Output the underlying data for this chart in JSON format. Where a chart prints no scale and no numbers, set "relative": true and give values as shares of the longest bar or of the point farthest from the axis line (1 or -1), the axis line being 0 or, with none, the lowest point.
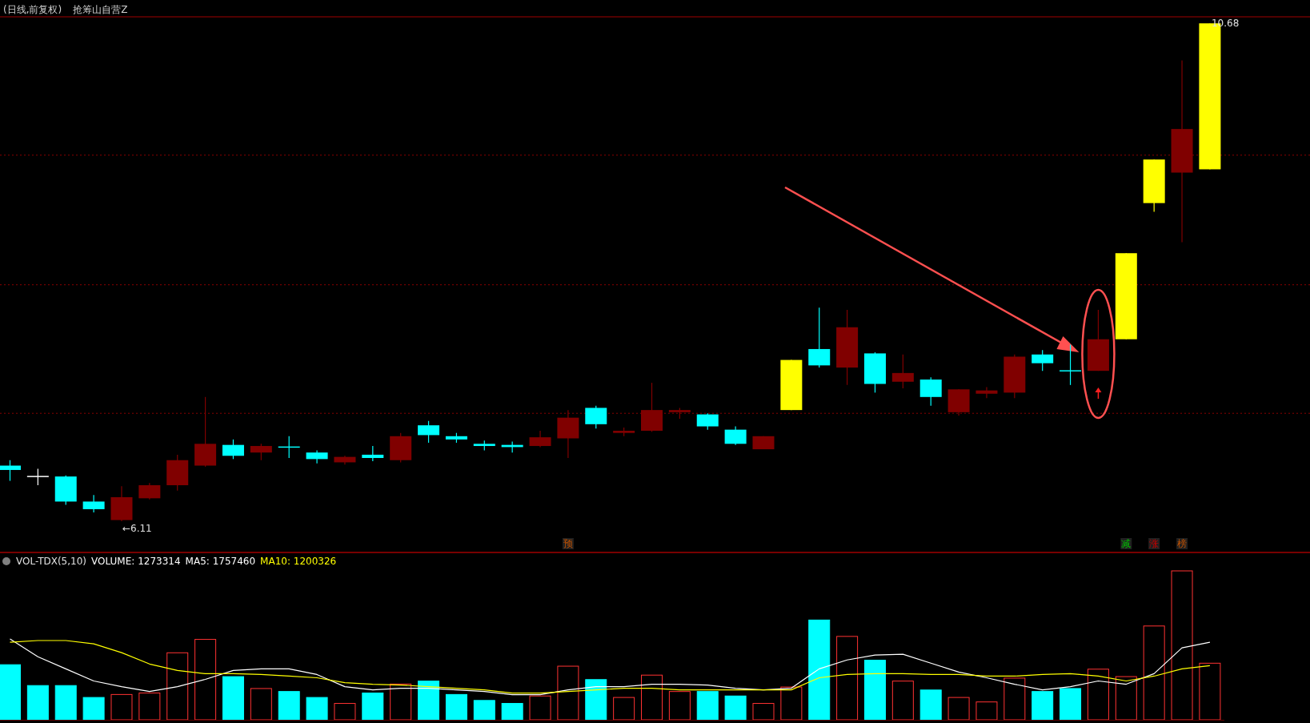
{
  "chart_data": [
    {
      "type": "candlestick",
      "title": "(日线,前复权)",
      "subtitle": "抢筹山自营Z",
      "categories": [
        null,
        null,
        null,
        null,
        null,
        null,
        null,
        null,
        null,
        null,
        null,
        null,
        null,
        null,
        null,
        null,
        null,
        null,
        null,
        null,
        null,
        null,
        null,
        null,
        null,
        null,
        null,
        null,
        null,
        null,
        null,
        null,
        null,
        null,
        null,
        null,
        null,
        null,
        null,
        null,
        null,
        null,
        null,
        null
      ],
      "ohlc": [
        [
          6.62,
          6.67,
          6.48,
          6.58
        ],
        [
          6.52,
          6.59,
          6.44,
          6.52
        ],
        [
          6.52,
          6.53,
          6.26,
          6.29
        ],
        [
          6.29,
          6.35,
          6.19,
          6.22
        ],
        [
          6.12,
          6.43,
          6.11,
          6.33
        ],
        [
          6.32,
          6.46,
          6.31,
          6.44
        ],
        [
          6.44,
          6.72,
          6.39,
          6.67
        ],
        [
          6.62,
          7.25,
          6.61,
          6.82
        ],
        [
          6.81,
          6.86,
          6.68,
          6.71
        ],
        [
          6.74,
          6.82,
          6.67,
          6.8
        ],
        [
          6.79,
          6.89,
          6.69,
          6.78
        ],
        [
          6.74,
          6.76,
          6.64,
          6.68
        ],
        [
          6.65,
          6.71,
          6.63,
          6.7
        ],
        [
          6.72,
          6.8,
          6.66,
          6.69
        ],
        [
          6.67,
          6.92,
          6.65,
          6.89
        ],
        [
          6.99,
          7.03,
          6.83,
          6.9
        ],
        [
          6.89,
          6.92,
          6.83,
          6.86
        ],
        [
          6.82,
          6.85,
          6.76,
          6.8
        ],
        [
          6.81,
          6.84,
          6.74,
          6.79
        ],
        [
          6.8,
          6.94,
          6.79,
          6.88
        ],
        [
          6.87,
          7.13,
          6.69,
          7.06
        ],
        [
          7.15,
          7.17,
          6.96,
          7.0
        ],
        [
          6.92,
          6.97,
          6.89,
          6.94
        ],
        [
          6.94,
          7.38,
          6.93,
          7.13
        ],
        [
          7.11,
          7.15,
          7.05,
          7.13
        ],
        [
          7.09,
          7.1,
          6.95,
          6.98
        ],
        [
          6.95,
          6.98,
          6.81,
          6.82
        ],
        [
          6.77,
          6.89,
          6.77,
          6.89
        ],
        [
          7.13,
          7.59,
          7.13,
          7.59
        ],
        [
          7.69,
          8.07,
          7.52,
          7.54
        ],
        [
          7.52,
          8.05,
          7.36,
          7.89
        ],
        [
          7.65,
          7.66,
          7.29,
          7.37
        ],
        [
          7.39,
          7.64,
          7.33,
          7.47
        ],
        [
          7.41,
          7.43,
          7.17,
          7.25
        ],
        [
          7.11,
          7.32,
          7.08,
          7.32
        ],
        [
          7.28,
          7.34,
          7.24,
          7.31
        ],
        [
          7.29,
          7.64,
          7.24,
          7.62
        ],
        [
          7.64,
          7.68,
          7.49,
          7.56
        ],
        [
          7.49,
          7.73,
          7.36,
          7.49
        ],
        [
          7.49,
          8.05,
          7.49,
          7.78
        ],
        [
          7.78,
          8.57,
          7.78,
          8.57
        ],
        [
          9.03,
          9.43,
          8.95,
          9.43
        ],
        [
          9.31,
          10.34,
          8.67,
          9.71
        ],
        [
          9.34,
          10.68,
          9.34,
          10.68
        ]
      ],
      "colors": [
        "#00ffff",
        "#ffffff",
        "#00ffff",
        "#00ffff",
        "#800000",
        "#800000",
        "#800000",
        "#800000",
        "#00ffff",
        "#800000",
        "#00ffff",
        "#00ffff",
        "#800000",
        "#00ffff",
        "#800000",
        "#00ffff",
        "#00ffff",
        "#00ffff",
        "#00ffff",
        "#800000",
        "#800000",
        "#00ffff",
        "#800000",
        "#800000",
        "#800000",
        "#00ffff",
        "#00ffff",
        "#800000",
        "#ffff00",
        "#00ffff",
        "#800000",
        "#00ffff",
        "#800000",
        "#00ffff",
        "#800000",
        "#800000",
        "#800000",
        "#00ffff",
        "#00ffff",
        "#800000",
        "#ffff00",
        "#ffff00",
        "#800000",
        "#ffff00"
      ],
      "ylim": [
        5.83,
        10.74
      ],
      "yticks": [
        {
          "value": 7.1,
          "label": null
        },
        {
          "value": 8.28,
          "label": null
        },
        {
          "value": 9.47,
          "label": null
        }
      ],
      "grid": "y",
      "annotations": [
        "←6.11",
        "10.68",
        "预",
        "减",
        "涨",
        "榜"
      ]
    },
    {
      "type": "bar",
      "title": "VOL-TDX(5,10)",
      "relative": true,
      "categories": [
        null,
        null,
        null,
        null,
        null,
        null,
        null,
        null,
        null,
        null,
        null,
        null,
        null,
        null,
        null,
        null,
        null,
        null,
        null,
        null,
        null,
        null,
        null,
        null,
        null,
        null,
        null,
        null,
        null,
        null,
        null,
        null,
        null,
        null,
        null,
        null,
        null,
        null,
        null,
        null,
        null,
        null,
        null,
        null
      ],
      "series": [
        {
          "name": "VOLUME: 1273314",
          "colors": [
            "#00ffff",
            "#00ffff",
            "#00ffff",
            "#00ffff",
            "#ff3232",
            "#ff3232",
            "#ff3232",
            "#ff3232",
            "#00ffff",
            "#ff3232",
            "#00ffff",
            "#00ffff",
            "#ff3232",
            "#00ffff",
            "#ff3232",
            "#00ffff",
            "#00ffff",
            "#00ffff",
            "#00ffff",
            "#ff3232",
            "#ff3232",
            "#00ffff",
            "#ff3232",
            "#ff3232",
            "#ff3232",
            "#00ffff",
            "#00ffff",
            "#ff3232",
            "#ff3232",
            "#00ffff",
            "#ff3232",
            "#00ffff",
            "#ff3232",
            "#00ffff",
            "#ff3232",
            "#ff3232",
            "#ff3232",
            "#00ffff",
            "#00ffff",
            "#ff3232",
            "#ff3232",
            "#ff3232",
            "#ff3232",
            "#ff3232"
          ],
          "values": [
            0.37,
            0.23,
            0.23,
            0.15,
            0.17,
            0.18,
            0.45,
            0.54,
            0.29,
            0.21,
            0.19,
            0.15,
            0.11,
            0.18,
            0.24,
            0.26,
            0.17,
            0.13,
            0.11,
            0.16,
            0.36,
            0.27,
            0.15,
            0.3,
            0.19,
            0.19,
            0.16,
            0.11,
            0.22,
            0.67,
            0.56,
            0.4,
            0.26,
            0.2,
            0.15,
            0.12,
            0.28,
            0.19,
            0.21,
            0.34,
            0.29,
            0.63,
            1,
            0.38
          ]
        }
      ]
    },
    {
      "type": "line",
      "relative": true,
      "categories": [
        null,
        null,
        null,
        null,
        null,
        null,
        null,
        null,
        null,
        null,
        null,
        null,
        null,
        null,
        null,
        null,
        null,
        null,
        null,
        null,
        null,
        null,
        null,
        null,
        null,
        null,
        null,
        null,
        null,
        null,
        null,
        null,
        null,
        null,
        null,
        null,
        null,
        null,
        null,
        null,
        null,
        null,
        null,
        null
      ],
      "series": [
        {
          "name": "MA5: 1757460",
          "color": "#ffffff",
          "values": [
            1,
            0.78,
            0.63,
            0.48,
            0.41,
            0.35,
            0.41,
            0.5,
            0.61,
            0.63,
            0.63,
            0.56,
            0.41,
            0.37,
            0.39,
            0.39,
            0.37,
            0.35,
            0.31,
            0.31,
            0.37,
            0.41,
            0.41,
            0.44,
            0.44,
            0.43,
            0.39,
            0.37,
            0.39,
            0.63,
            0.74,
            0.8,
            0.81,
            0.7,
            0.59,
            0.52,
            0.44,
            0.37,
            0.41,
            0.48,
            0.44,
            0.57,
            0.89,
            0.96
          ]
        },
        {
          "name": "MA10: 1200326",
          "color": "#ffff00",
          "values": [
            0.96,
            0.98,
            0.98,
            0.94,
            0.83,
            0.69,
            0.61,
            0.57,
            0.57,
            0.56,
            0.54,
            0.52,
            0.46,
            0.44,
            0.43,
            0.41,
            0.39,
            0.37,
            0.33,
            0.33,
            0.35,
            0.37,
            0.39,
            0.39,
            0.37,
            0.37,
            0.37,
            0.37,
            0.37,
            0.52,
            0.56,
            0.57,
            0.57,
            0.56,
            0.56,
            0.54,
            0.54,
            0.56,
            0.57,
            0.54,
            0.48,
            0.54,
            0.63,
            0.67
          ]
        }
      ]
    }
  ]
}
